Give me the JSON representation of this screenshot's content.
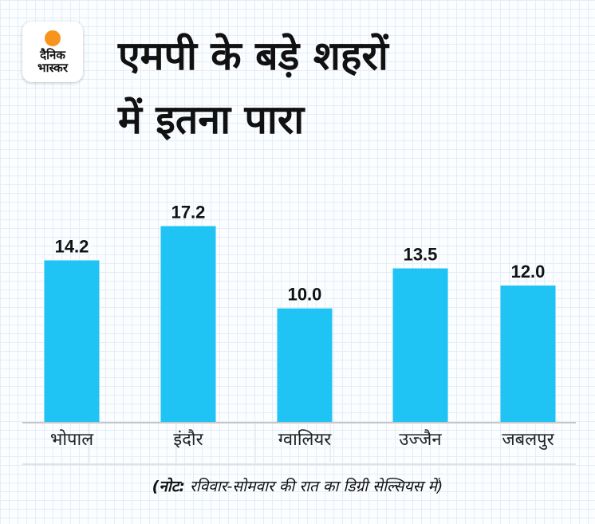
{
  "logo": {
    "line1": "दैनिक",
    "line2": "भास्कर"
  },
  "title": {
    "line1": "एमपी के बड़े शहरों",
    "line2": "में इतना पारा"
  },
  "note": {
    "bold": "(नोट:",
    "text": " रविवार-सोमवार की रात का डिग्री सेल्सियस में)"
  },
  "colors": {
    "bar": "#1fc4f4",
    "axis": "#c8c8c8"
  },
  "chart_data": {
    "type": "bar",
    "title": "एमपी के बड़े शहरों में इतना पारा",
    "categories": [
      "भोपाल",
      "इंदौर",
      "ग्वालियर",
      "उज्जैन",
      "जबलपुर"
    ],
    "values": [
      14.2,
      17.2,
      10.0,
      13.5,
      12.0
    ],
    "labels": [
      "14.2",
      "17.2",
      "10.0",
      "13.5",
      "12.0"
    ],
    "ylabel": "डिग्री सेल्सियस",
    "xlabel": "",
    "ylim": [
      0,
      30
    ],
    "grid": false
  }
}
